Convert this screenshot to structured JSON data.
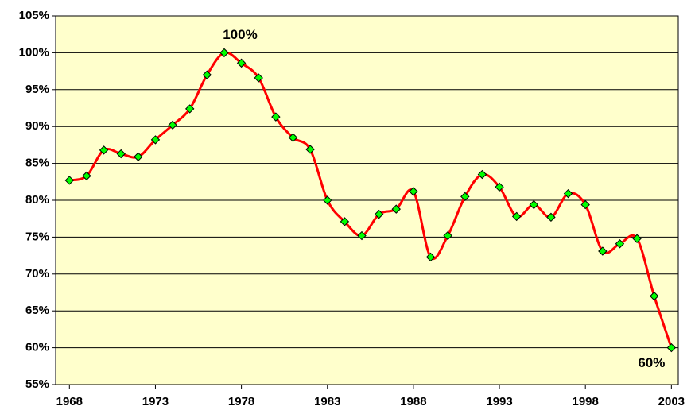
{
  "chart_data": {
    "type": "line",
    "x": [
      1968,
      1969,
      1970,
      1971,
      1972,
      1973,
      1974,
      1975,
      1976,
      1977,
      1978,
      1979,
      1980,
      1981,
      1982,
      1983,
      1984,
      1985,
      1986,
      1987,
      1988,
      1989,
      1990,
      1991,
      1992,
      1993,
      1994,
      1995,
      1996,
      1997,
      1998,
      1999,
      2000,
      2001,
      2002,
      2003
    ],
    "series": [
      {
        "color": "#ff0000",
        "marker_color": "#00ff00",
        "values": [
          82.7,
          83.3,
          86.8,
          86.3,
          85.9,
          88.2,
          90.2,
          92.4,
          97.0,
          100,
          98.6,
          96.6,
          91.3,
          88.5,
          86.9,
          80.0,
          77.1,
          75.2,
          78.1,
          78.8,
          81.2,
          72.3,
          75.2,
          80.5,
          83.5,
          81.8,
          77.8,
          79.4,
          77.7,
          80.9,
          79.4,
          73.1,
          74.1,
          74.8,
          67.0,
          60
        ],
        "value_labels": [
          null,
          null,
          null,
          null,
          null,
          null,
          null,
          null,
          null,
          "100%",
          null,
          null,
          null,
          null,
          null,
          null,
          null,
          null,
          null,
          null,
          null,
          null,
          null,
          null,
          null,
          null,
          null,
          null,
          null,
          null,
          null,
          null,
          null,
          null,
          null,
          "60%"
        ]
      }
    ],
    "xlim": [
      1967.2,
      2003.4
    ],
    "xticks": [
      1968,
      1973,
      1978,
      1983,
      1988,
      1993,
      1998,
      2003
    ],
    "ylim": [
      55,
      105
    ],
    "yticks": [
      {
        "value": 55,
        "label": "55%"
      },
      {
        "value": 60,
        "label": "60%"
      },
      {
        "value": 65,
        "label": "65%"
      },
      {
        "value": 70,
        "label": "70%"
      },
      {
        "value": 75,
        "label": "75%"
      },
      {
        "value": 80,
        "label": "80%"
      },
      {
        "value": 85,
        "label": "85%"
      },
      {
        "value": 90,
        "label": "90%"
      },
      {
        "value": 95,
        "label": "95%"
      },
      {
        "value": 100,
        "label": "100%"
      },
      {
        "value": 105,
        "label": "105%"
      }
    ],
    "grid": true,
    "background": "#ffffcc"
  }
}
